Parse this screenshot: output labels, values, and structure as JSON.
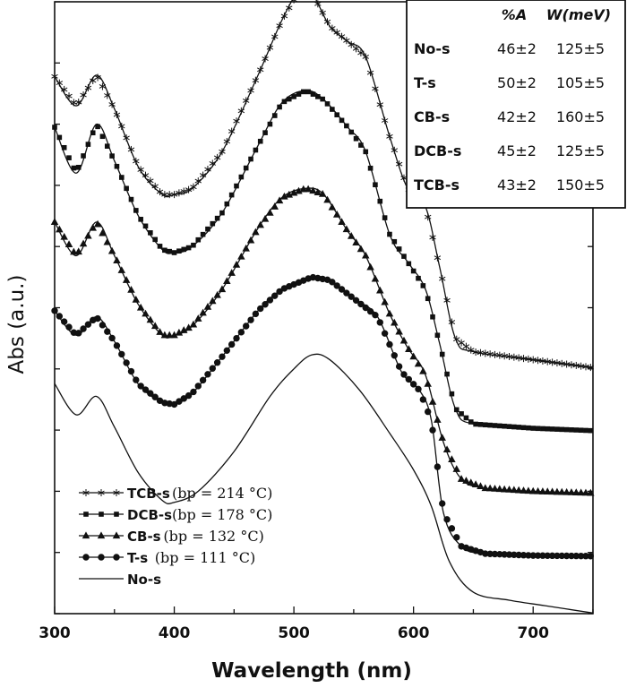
{
  "chart_data": {
    "type": "line",
    "xlabel": "Wavelength (nm)",
    "ylabel": "Abs (a.u.)",
    "xlim": [
      300,
      750
    ],
    "ylim": [
      0,
      10
    ],
    "x_ticks": [
      "300",
      "400",
      "500",
      "600",
      "700"
    ],
    "grid": false,
    "legend_position": "bottom-left",
    "series": [
      {
        "name": "TCB-s",
        "note": "(bp = 214 °C)",
        "marker": "star",
        "points": [
          [
            300,
            8.78
          ],
          [
            318,
            8.3
          ],
          [
            335,
            8.8
          ],
          [
            350,
            8.25
          ],
          [
            370,
            7.3
          ],
          [
            390,
            6.85
          ],
          [
            400,
            6.85
          ],
          [
            415,
            6.95
          ],
          [
            440,
            7.55
          ],
          [
            470,
            8.8
          ],
          [
            490,
            9.7
          ],
          [
            505,
            10.2
          ],
          [
            515,
            10.15
          ],
          [
            530,
            9.6
          ],
          [
            545,
            9.35
          ],
          [
            560,
            9.1
          ],
          [
            580,
            7.8
          ],
          [
            595,
            6.95
          ],
          [
            610,
            6.65
          ],
          [
            622,
            5.65
          ],
          [
            635,
            4.5
          ],
          [
            650,
            4.28
          ],
          [
            700,
            4.15
          ],
          [
            750,
            4.02
          ]
        ]
      },
      {
        "name": "DCB-s",
        "note": "(bp = 178 °C)",
        "marker": "square",
        "points": [
          [
            300,
            7.95
          ],
          [
            318,
            7.2
          ],
          [
            335,
            8.0
          ],
          [
            350,
            7.4
          ],
          [
            370,
            6.5
          ],
          [
            390,
            5.95
          ],
          [
            400,
            5.9
          ],
          [
            415,
            6.0
          ],
          [
            440,
            6.55
          ],
          [
            470,
            7.65
          ],
          [
            490,
            8.35
          ],
          [
            510,
            8.55
          ],
          [
            525,
            8.4
          ],
          [
            545,
            7.95
          ],
          [
            560,
            7.55
          ],
          [
            580,
            6.2
          ],
          [
            595,
            5.75
          ],
          [
            610,
            5.3
          ],
          [
            622,
            4.4
          ],
          [
            635,
            3.35
          ],
          [
            650,
            3.1
          ],
          [
            700,
            3.03
          ],
          [
            750,
            2.99
          ]
        ]
      },
      {
        "name": "CB-s",
        "note": "(bp = 132 °C)",
        "marker": "triangle",
        "points": [
          [
            300,
            6.4
          ],
          [
            318,
            5.85
          ],
          [
            335,
            6.4
          ],
          [
            350,
            5.85
          ],
          [
            370,
            5.05
          ],
          [
            390,
            4.55
          ],
          [
            400,
            4.55
          ],
          [
            415,
            4.7
          ],
          [
            440,
            5.3
          ],
          [
            470,
            6.3
          ],
          [
            490,
            6.8
          ],
          [
            510,
            6.95
          ],
          [
            525,
            6.85
          ],
          [
            545,
            6.25
          ],
          [
            560,
            5.85
          ],
          [
            580,
            4.9
          ],
          [
            595,
            4.35
          ],
          [
            610,
            3.9
          ],
          [
            625,
            2.8
          ],
          [
            640,
            2.2
          ],
          [
            660,
            2.05
          ],
          [
            700,
            2.0
          ],
          [
            750,
            1.97
          ]
        ]
      },
      {
        "name": "T-s",
        "note": "(bp = 111 °C)",
        "marker": "circle",
        "points": [
          [
            300,
            4.95
          ],
          [
            318,
            4.55
          ],
          [
            335,
            4.85
          ],
          [
            350,
            4.45
          ],
          [
            370,
            3.75
          ],
          [
            390,
            3.45
          ],
          [
            400,
            3.42
          ],
          [
            415,
            3.6
          ],
          [
            440,
            4.2
          ],
          [
            470,
            4.95
          ],
          [
            490,
            5.3
          ],
          [
            515,
            5.5
          ],
          [
            530,
            5.45
          ],
          [
            550,
            5.15
          ],
          [
            570,
            4.85
          ],
          [
            590,
            3.95
          ],
          [
            605,
            3.65
          ],
          [
            615,
            3.15
          ],
          [
            625,
            1.65
          ],
          [
            640,
            1.1
          ],
          [
            660,
            0.98
          ],
          [
            700,
            0.95
          ],
          [
            750,
            0.94
          ]
        ]
      },
      {
        "name": "No-s",
        "note": "",
        "marker": "none",
        "points": [
          [
            300,
            3.76
          ],
          [
            318,
            3.25
          ],
          [
            335,
            3.55
          ],
          [
            350,
            3.05
          ],
          [
            370,
            2.3
          ],
          [
            390,
            1.85
          ],
          [
            400,
            1.82
          ],
          [
            420,
            2.0
          ],
          [
            450,
            2.65
          ],
          [
            480,
            3.55
          ],
          [
            500,
            4.0
          ],
          [
            515,
            4.23
          ],
          [
            530,
            4.15
          ],
          [
            555,
            3.65
          ],
          [
            580,
            2.95
          ],
          [
            600,
            2.35
          ],
          [
            615,
            1.75
          ],
          [
            630,
            0.85
          ],
          [
            650,
            0.35
          ],
          [
            680,
            0.22
          ],
          [
            710,
            0.13
          ],
          [
            750,
            0.01
          ]
        ]
      }
    ]
  },
  "table": {
    "headers": [
      "%A",
      "W(meV)"
    ],
    "rows": [
      {
        "name": "No-s",
        "a": "46±2",
        "w": "125±5"
      },
      {
        "name": "T-s",
        "a": "50±2",
        "w": "105±5"
      },
      {
        "name": "CB-s",
        "a": "42±2",
        "w": "160±5"
      },
      {
        "name": "DCB-s",
        "a": "45±2",
        "w": "125±5"
      },
      {
        "name": "TCB-s",
        "a": "43±2",
        "w": "150±5"
      }
    ]
  },
  "colors": {
    "line": "#111111",
    "axis": "#111111",
    "background": "#ffffff"
  }
}
